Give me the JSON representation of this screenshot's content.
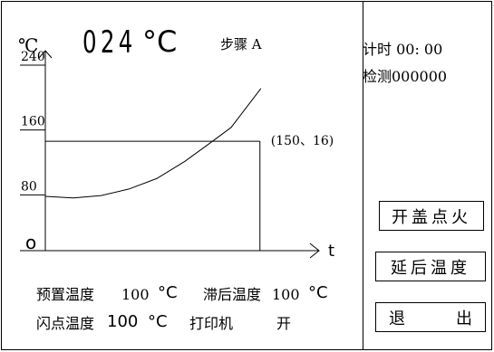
{
  "header": {
    "unit_label": "℃",
    "temperature": "024",
    "temperature_unit": "°C",
    "step_label": "步骤 A"
  },
  "chart_data": {
    "type": "line",
    "ylabel": "℃",
    "xlabel": "t",
    "origin_label": "o",
    "y_ticks": [
      "240",
      "160",
      "80"
    ],
    "ylim": [
      0,
      240
    ],
    "curve_y": [
      67,
      65,
      68,
      76,
      89,
      110,
      135,
      152,
      200
    ],
    "curve_x": [
      0,
      15,
      30,
      45,
      60,
      75,
      90,
      100,
      116
    ],
    "target_point": {
      "x": 150,
      "y": 16,
      "label": "(150、16)"
    },
    "target_level": 135,
    "grid": false
  },
  "side": {
    "timer": "计时 00: 00",
    "detect": "检测000000",
    "ignite_button": "开盖点火",
    "delay_button": "延后温度",
    "exit_left": "退",
    "exit_right": "出"
  },
  "footer": {
    "preset_label": "预置温度",
    "preset_value": "100",
    "preset_unit": "°C",
    "lag_label": "滞后温度",
    "lag_value": "100",
    "lag_unit": "°C",
    "flash_label": "闪点温度",
    "flash_value": "100",
    "flash_unit": "°C",
    "printer_label": "打印机",
    "printer_state": "开"
  }
}
